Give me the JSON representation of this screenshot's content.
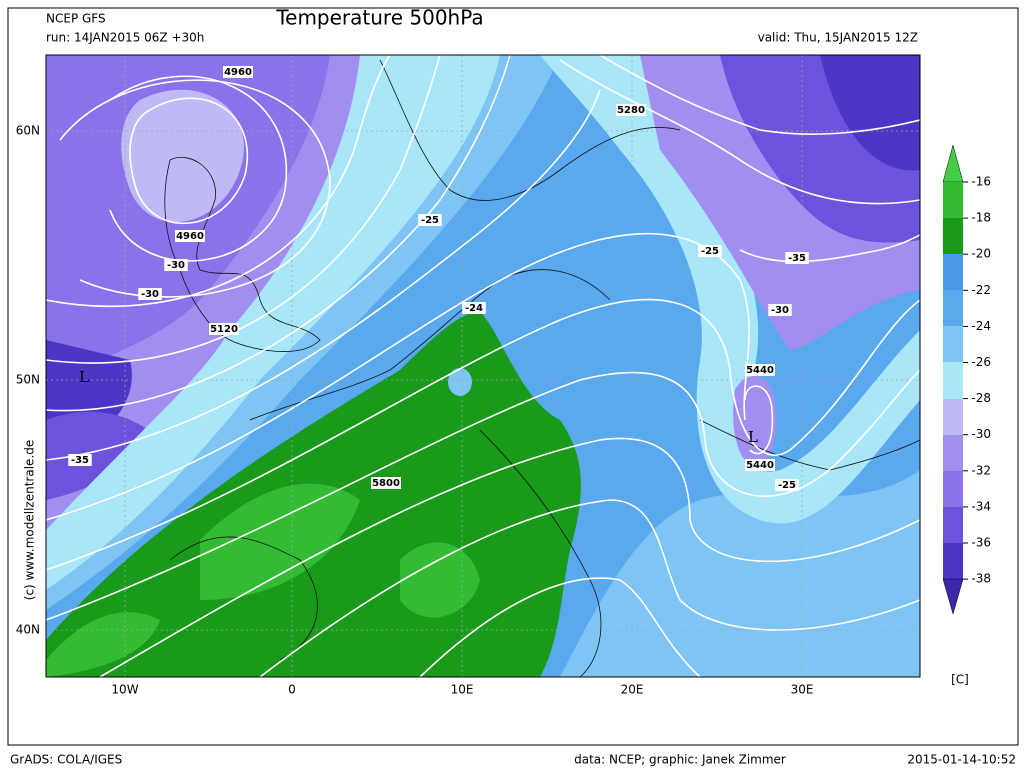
{
  "header": {
    "model": "NCEP GFS",
    "run": "run: 14JAN2015 06Z +30h",
    "title": "Temperature 500hPa",
    "valid": "valid: Thu, 15JAN2015 12Z"
  },
  "axes": {
    "lat_labels": [
      "60N",
      "50N",
      "40N"
    ],
    "lon_labels": [
      "10W",
      "0",
      "10E",
      "20E",
      "30E"
    ]
  },
  "colorbar": {
    "labels": [
      "-16",
      "-18",
      "-20",
      "-22",
      "-24",
      "-26",
      "-28",
      "-30",
      "-32",
      "-34",
      "-36",
      "-38"
    ],
    "unit": "[C]"
  },
  "map_labels": [
    "4960",
    "4960",
    "5120",
    "5280",
    "5440",
    "5440",
    "5800",
    "L",
    "L",
    "-30",
    "-30",
    "-35",
    "-25",
    "-24",
    "-25",
    "-35",
    "-30",
    "-25"
  ],
  "credit": "(c) www.modellzentrale.de",
  "footer": {
    "left": "GrADS: COLA/IGES",
    "center": "data: NCEP; graphic: Janek Zimmer",
    "right": "2015-01-14-10:52"
  }
}
